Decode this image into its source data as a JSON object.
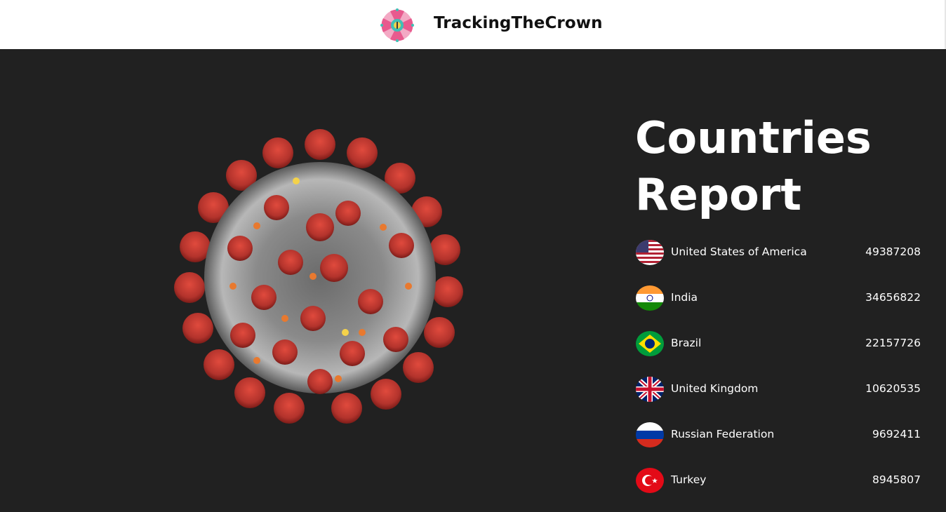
{
  "header": {
    "brand": "TrackingTheCrown",
    "logo_icon": "virus-flower-logo-icon"
  },
  "hero": {
    "image": "coronavirus-illustration",
    "title_line1": "Countries",
    "title_line2": "Report"
  },
  "countries": [
    {
      "name": "United States of America",
      "cases": "49387208",
      "flag": "usa-flag-icon"
    },
    {
      "name": "India",
      "cases": "34656822",
      "flag": "india-flag-icon"
    },
    {
      "name": "Brazil",
      "cases": "22157726",
      "flag": "brazil-flag-icon"
    },
    {
      "name": "United Kingdom",
      "cases": "10620535",
      "flag": "uk-flag-icon"
    },
    {
      "name": "Russian Federation",
      "cases": "9692411",
      "flag": "russia-flag-icon"
    },
    {
      "name": "Turkey",
      "cases": "8945807",
      "flag": "turkey-flag-icon"
    }
  ],
  "colors": {
    "background": "#212121",
    "header_bg": "#ffffff",
    "logo_pink": "#e85a8e",
    "logo_teal": "#3fc0b5",
    "virus_red": "#b3332c"
  }
}
